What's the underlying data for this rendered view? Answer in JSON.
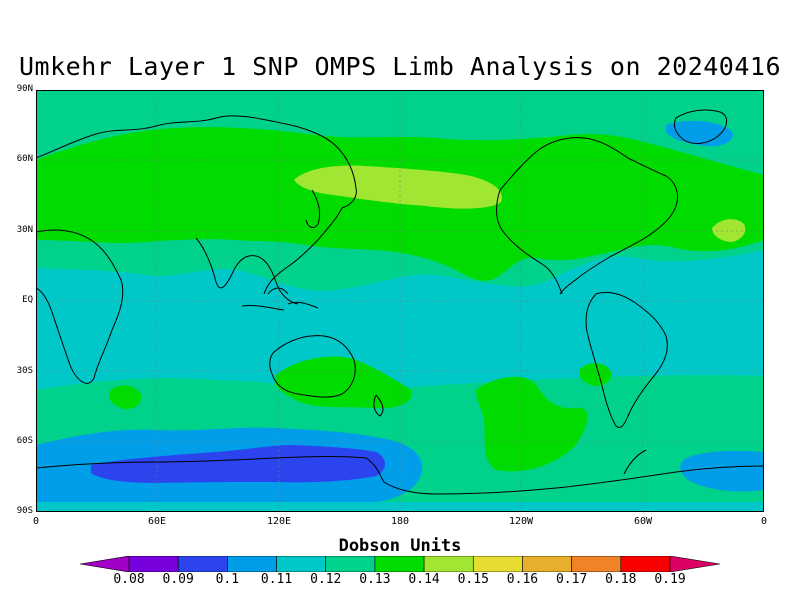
{
  "title": "Umkehr Layer 1 SNP OMPS Limb Analysis on 20240416",
  "map": {
    "type": "global-contour-map",
    "projection": "equirectangular",
    "lon_range": [
      0,
      360
    ],
    "lat_range": [
      -90,
      90
    ],
    "y_ticks": [
      "90N",
      "60N",
      "30N",
      "EQ",
      "30S",
      "60S",
      "90S"
    ],
    "x_ticks": [
      "0",
      "60E",
      "120E",
      "180",
      "120W",
      "60W",
      "0"
    ],
    "dominant_levels": {
      "north_pacific_band": 0.15,
      "northern_midlatitudes": 0.14,
      "tropics": 0.12,
      "antarctic_interior": 0.1
    }
  },
  "colorbar": {
    "title": "Dobson Units",
    "labels": [
      "0.08",
      "0.09",
      "0.1",
      "0.11",
      "0.12",
      "0.13",
      "0.14",
      "0.15",
      "0.16",
      "0.17",
      "0.18",
      "0.19"
    ],
    "colors": [
      "#a000c8",
      "#7800dc",
      "#2c44ee",
      "#009ee8",
      "#00c8c8",
      "#00d28c",
      "#00dc00",
      "#a0e632",
      "#e6dc32",
      "#e6af2d",
      "#f08228",
      "#fa0000",
      "#dc0064"
    ]
  }
}
